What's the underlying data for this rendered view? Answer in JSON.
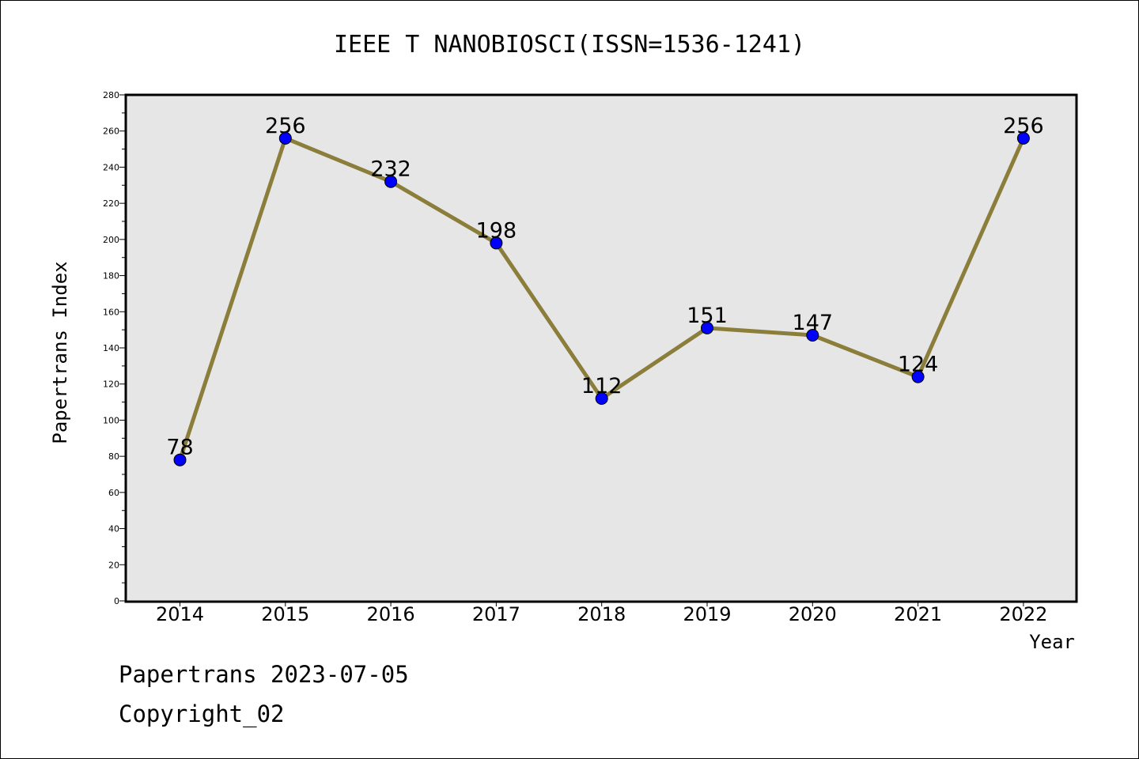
{
  "chart_data": {
    "type": "line",
    "title": "IEEE T NANOBIOSCI(ISSN=1536-1241)",
    "xlabel": "Year",
    "ylabel": "Papertrans Index",
    "categories": [
      "2014",
      "2015",
      "2016",
      "2017",
      "2018",
      "2019",
      "2020",
      "2021",
      "2022"
    ],
    "values": [
      78,
      256,
      232,
      198,
      112,
      151,
      147,
      124,
      256
    ],
    "ylim": [
      0,
      280
    ],
    "yticks": [
      0,
      20,
      40,
      60,
      80,
      100,
      120,
      140,
      160,
      180,
      200,
      220,
      240,
      260,
      280
    ],
    "grid": false,
    "line_color": "#8B7D3A",
    "marker_color": "#0000FF",
    "plot_background": "#E6E6E6"
  },
  "footer": {
    "date_line": "Papertrans 2023-07-05",
    "copyright": "Copyright_02"
  }
}
